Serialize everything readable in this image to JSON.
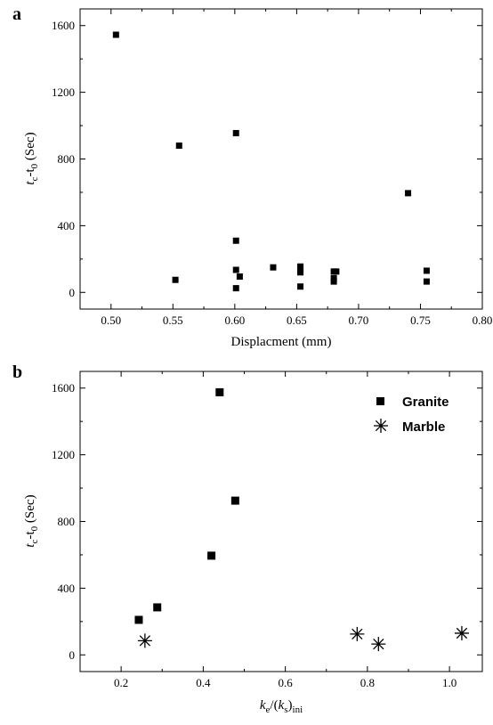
{
  "chart_data": [
    {
      "type": "scatter",
      "panel": "a",
      "xlabel": "Displacment (mm)",
      "ylabel": {
        "t": "t",
        "c": "c",
        "dash": "-t",
        "zero": "0",
        "unit": " (Sec)"
      },
      "xlim": [
        0.475,
        0.8
      ],
      "ylim": [
        -100,
        1700
      ],
      "xticks": [
        0.5,
        0.55,
        0.6,
        0.65,
        0.7,
        0.75,
        0.8
      ],
      "xtick_labels": [
        "0.50",
        "0.55",
        "0.60",
        "0.65",
        "0.70",
        "0.75",
        "0.80"
      ],
      "yticks": [
        0,
        400,
        800,
        1200,
        1600
      ],
      "ytick_labels": [
        "0",
        "400",
        "800",
        "1200",
        "1600"
      ],
      "grid": false,
      "series": [
        {
          "marker": "square",
          "x": [
            0.504,
            0.552,
            0.555,
            0.601,
            0.601,
            0.601,
            0.601,
            0.604,
            0.631,
            0.653,
            0.653,
            0.653,
            0.653,
            0.68,
            0.68,
            0.68,
            0.682,
            0.74,
            0.755,
            0.755
          ],
          "y": [
            1545,
            75,
            880,
            955,
            310,
            135,
            25,
            95,
            150,
            155,
            120,
            35,
            130,
            125,
            85,
            65,
            125,
            595,
            130,
            65
          ]
        }
      ]
    },
    {
      "type": "scatter",
      "panel": "b",
      "xlabel": {
        "k": "k",
        "e": "e",
        "slash": "/(",
        "ks": "k",
        "s": "s",
        "close": ")",
        "ini": "ini"
      },
      "ylabel": {
        "t": "t",
        "c": "c",
        "dash": "-t",
        "zero": "0",
        "unit": " (Sec)"
      },
      "xlim": [
        0.1,
        1.08
      ],
      "ylim": [
        -100,
        1700
      ],
      "xticks": [
        0.2,
        0.4,
        0.6,
        0.8,
        1.0
      ],
      "xtick_labels": [
        "0.2",
        "0.4",
        "0.6",
        "0.8",
        "1.0"
      ],
      "yticks": [
        0,
        400,
        800,
        1200,
        1600
      ],
      "ytick_labels": [
        "0",
        "400",
        "800",
        "1200",
        "1600"
      ],
      "grid": false,
      "legend_position": "top-right",
      "series": [
        {
          "name": "Granite",
          "marker": "square",
          "x": [
            0.243,
            0.288,
            0.42,
            0.44,
            0.478
          ],
          "y": [
            210,
            285,
            595,
            1575,
            925
          ]
        },
        {
          "name": "Marble",
          "marker": "asterisk",
          "x": [
            0.258,
            0.775,
            0.827,
            1.03
          ],
          "y": [
            85,
            125,
            65,
            130
          ]
        }
      ]
    }
  ]
}
